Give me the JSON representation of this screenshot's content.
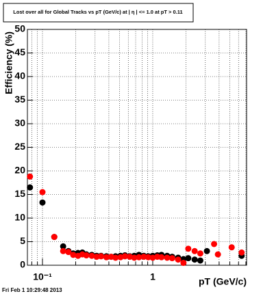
{
  "chart_data": {
    "type": "scatter",
    "title": "Lost over all for Global Tracks vs pT (GeV/c) at | η | <= 1.0 at pT > 0.11",
    "x_label": "pT (GeV/c)",
    "y_label": "Efficiency (%)",
    "footer": "Fri Feb  1 10:29:48 2013",
    "x": [
      0.077,
      0.1,
      0.128,
      0.154,
      0.172,
      0.19,
      0.21,
      0.23,
      0.25,
      0.28,
      0.31,
      0.34,
      0.38,
      0.42,
      0.46,
      0.51,
      0.56,
      0.62,
      0.68,
      0.75,
      0.83,
      0.91,
      1.0,
      1.1,
      1.2,
      1.35,
      1.5,
      1.7,
      1.9,
      2.1,
      2.4,
      2.7,
      3.1,
      3.6,
      3.9,
      5.2,
      6.4
    ],
    "series": [
      {
        "color": "#000000",
        "values": [
          16.5,
          13.3,
          6,
          4,
          3,
          2.5,
          2.6,
          2.7,
          2.3,
          2.2,
          2,
          2,
          1.9,
          1.8,
          1.9,
          2,
          2.1,
          1.9,
          2,
          2.2,
          2,
          1.9,
          2,
          2.1,
          2.2,
          2,
          1.8,
          1.6,
          1.3,
          1.5,
          1.2,
          1,
          3,
          null,
          null,
          null,
          2
        ]
      },
      {
        "color": "#ff0000",
        "values": [
          18.8,
          15.5,
          6,
          3,
          2.8,
          2.2,
          2,
          2.3,
          2.1,
          2,
          1.8,
          1.9,
          1.7,
          1.8,
          1.6,
          1.7,
          1.9,
          1.8,
          1.6,
          1.7,
          1.8,
          1.7,
          1.6,
          1.8,
          1.7,
          1.6,
          1.5,
          1.2,
          0.5,
          3.5,
          3,
          2.5,
          null,
          4.5,
          2.3,
          3.8,
          2.7
        ]
      }
    ],
    "xlog": true,
    "xlim": [
      0.073,
      7.1
    ],
    "ylim": [
      0,
      50
    ],
    "xticks": [
      {
        "value": 0.1,
        "label": "10⁻¹"
      },
      1
    ],
    "xminorticks": [
      0.08,
      0.09,
      0.2,
      0.3,
      0.4,
      0.5,
      0.6,
      0.7,
      0.8,
      0.9,
      2,
      3,
      4,
      5,
      6,
      7
    ],
    "yticks": [
      0,
      5,
      10,
      15,
      20,
      25,
      30,
      35,
      40,
      45,
      50
    ],
    "grid": true
  }
}
